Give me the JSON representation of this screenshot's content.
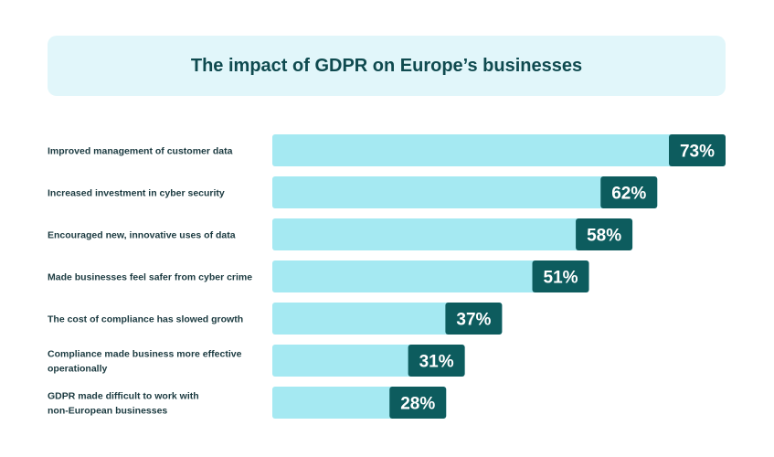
{
  "colors": {
    "title_bg": "#e1f6fa",
    "title_text": "#0f4a4f",
    "bar_fill": "#a5e9f2",
    "value_badge": "#0d5c5e",
    "value_text": "#ffffff",
    "label_text": "#1b3a40"
  },
  "chart_data": {
    "type": "bar",
    "orientation": "horizontal",
    "title": "The impact of GDPR on Europe’s businesses",
    "xlim": [
      0,
      73
    ],
    "grid": false,
    "legend": "none",
    "categories": [
      [
        "Improved management of customer data"
      ],
      [
        "Increased investment in cyber security"
      ],
      [
        "Encouraged new, innovative uses of data"
      ],
      [
        "Made businesses feel safer from cyber crime"
      ],
      [
        "The cost of compliance has slowed growth"
      ],
      [
        "Compliance made business more effective",
        "operationally"
      ],
      [
        "GDPR made difficult to work with",
        "non-European businesses"
      ]
    ],
    "values": [
      73,
      62,
      58,
      51,
      37,
      31,
      28
    ],
    "value_labels": [
      "73%",
      "62%",
      "58%",
      "51%",
      "37%",
      "31%",
      "28%"
    ]
  }
}
